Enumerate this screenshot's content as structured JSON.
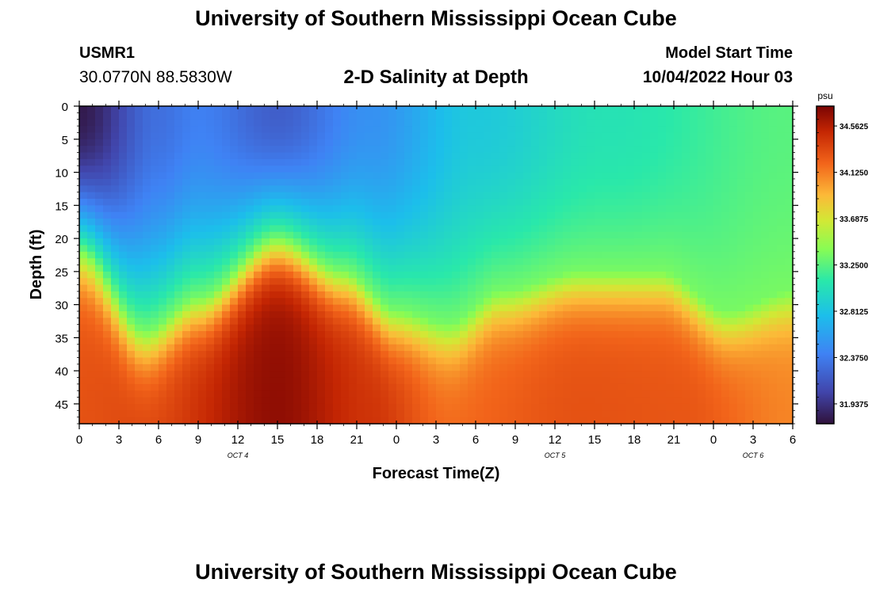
{
  "page": {
    "title": "University of Southern Mississippi Ocean Cube",
    "station_id": "USMR1",
    "coordinates": "30.0770N  88.5830W",
    "subtitle": "2-D Salinity at Depth",
    "model_start_label": "Model Start Time",
    "model_start_value": "10/04/2022 Hour 03",
    "footer_title": "University of Southern Mississippi Ocean Cube"
  },
  "chart_data": {
    "type": "heatmap",
    "title": "2-D Salinity at Depth",
    "xlabel": "Forecast Time(Z)",
    "ylabel": "Depth (ft)",
    "x_ticks": [
      "0",
      "3",
      "6",
      "9",
      "12",
      "15",
      "18",
      "21",
      "0",
      "3",
      "6",
      "9",
      "12",
      "15",
      "18",
      "21",
      "0",
      "3",
      "6"
    ],
    "x_range_hours": [
      0,
      54
    ],
    "date_labels": [
      {
        "text": "OCT 4",
        "hour": 12
      },
      {
        "text": "OCT 5",
        "hour": 36
      },
      {
        "text": "OCT 6",
        "hour": 51
      }
    ],
    "y_ticks": [
      0,
      5,
      10,
      15,
      20,
      25,
      30,
      35,
      40,
      45
    ],
    "y_range_ft": [
      0,
      48
    ],
    "colorbar": {
      "unit": "psu",
      "tick_labels": [
        "34.5625",
        "34.1250",
        "33.6875",
        "33.2500",
        "32.8125",
        "32.3750",
        "31.9375"
      ],
      "range": [
        31.75,
        34.75
      ]
    },
    "halocline_depth_ft": [
      {
        "hour": 0,
        "depth": 22
      },
      {
        "hour": 5,
        "depth": 34
      },
      {
        "hour": 9,
        "depth": 29
      },
      {
        "hour": 15,
        "depth": 20
      },
      {
        "hour": 20,
        "depth": 25
      },
      {
        "hour": 24,
        "depth": 31
      },
      {
        "hour": 28,
        "depth": 33
      },
      {
        "hour": 32,
        "depth": 28
      },
      {
        "hour": 38,
        "depth": 25
      },
      {
        "hour": 44,
        "depth": 25
      },
      {
        "hour": 49,
        "depth": 31
      },
      {
        "hour": 54,
        "depth": 28
      }
    ],
    "surface_salinity_psu": [
      {
        "hour": 0,
        "value": 31.8
      },
      {
        "hour": 6,
        "value": 32.3
      },
      {
        "hour": 9,
        "value": 32.4
      },
      {
        "hour": 15,
        "value": 32.2
      },
      {
        "hour": 22,
        "value": 32.5
      },
      {
        "hour": 30,
        "value": 32.85
      },
      {
        "hour": 40,
        "value": 33.05
      },
      {
        "hour": 54,
        "value": 33.25
      }
    ],
    "bottom_salinity_psu": [
      {
        "hour": 0,
        "value": 34.3
      },
      {
        "hour": 5,
        "value": 34.35
      },
      {
        "hour": 15,
        "value": 34.68
      },
      {
        "hour": 22,
        "value": 34.45
      },
      {
        "hour": 28,
        "value": 34.2
      },
      {
        "hour": 38,
        "value": 34.3
      },
      {
        "hour": 46,
        "value": 34.28
      },
      {
        "hour": 54,
        "value": 34.1
      }
    ]
  }
}
